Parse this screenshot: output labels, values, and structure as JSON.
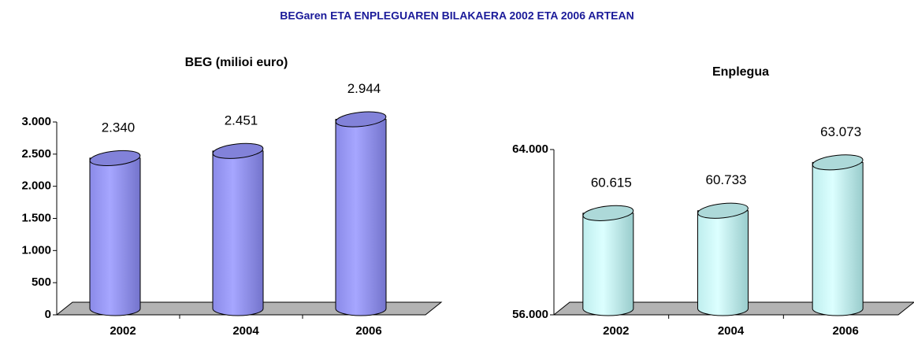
{
  "title": "BEGaren ETA ENPLEGUAREN BILAKAERA 2002 ETA 2006 ARTEAN",
  "chart_data": [
    {
      "type": "bar",
      "title": "BEG (milioi euro)",
      "categories": [
        "2002",
        "2004",
        "2006"
      ],
      "values": [
        2340,
        2451,
        2944
      ],
      "value_labels": [
        "2.340",
        "2.451",
        "2.944"
      ],
      "color": "#9999ff",
      "ylim": [
        0,
        3000
      ],
      "yticks": [
        {
          "value": 0,
          "label": "0"
        },
        {
          "value": 500,
          "label": "500"
        },
        {
          "value": 1000,
          "label": "1.000"
        },
        {
          "value": 1500,
          "label": "1.500"
        },
        {
          "value": 2000,
          "label": "2.000"
        },
        {
          "value": 2500,
          "label": "2.500"
        },
        {
          "value": 3000,
          "label": "3.000"
        }
      ],
      "grid": false
    },
    {
      "type": "bar",
      "title": "Enplegua",
      "categories": [
        "2002",
        "2004",
        "2006"
      ],
      "values": [
        60615,
        60733,
        63073
      ],
      "value_labels": [
        "60.615",
        "60.733",
        "63.073"
      ],
      "color": "#ccffff",
      "ylim": [
        56000,
        64000
      ],
      "yticks": [
        {
          "value": 56000,
          "label": "56.000"
        },
        {
          "value": 64000,
          "label": "64.000"
        }
      ],
      "grid": false
    }
  ]
}
